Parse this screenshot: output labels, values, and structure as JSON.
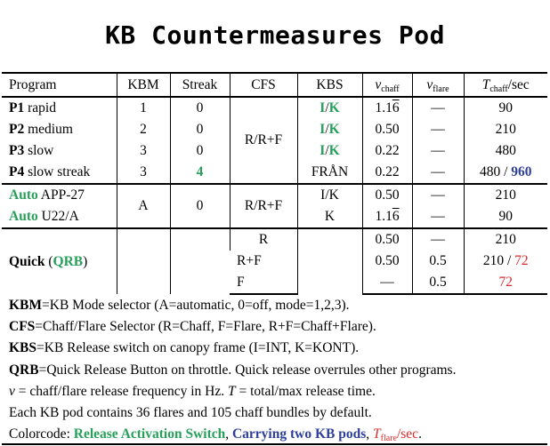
{
  "title": "KB Countermeasures Pod",
  "headers": {
    "program": "Program",
    "kbm": "KBM",
    "streak": "Streak",
    "cfs": "CFS",
    "kbs": "KBS",
    "nu": "ν",
    "nu_chaff_sub": "chaff",
    "nu_flare_sub": "flare",
    "t": "T",
    "t_sub": "chaff",
    "t_unit": "/sec"
  },
  "rows": {
    "p1": {
      "code": "P1",
      "name": " rapid",
      "kbm": "1",
      "streak": "0",
      "kbs_i": "I",
      "kbs_sep": "/",
      "kbs_k": "K",
      "nu_chaff_base": "1.1",
      "nu_chaff_rep": "6",
      "nu_flare": "—",
      "t_chaff": "90"
    },
    "p2": {
      "code": "P2",
      "name": " medium",
      "kbm": "2",
      "streak": "0",
      "kbs_i": "I",
      "kbs_sep": "/",
      "kbs_k": "K",
      "nu_chaff": "0.50",
      "nu_flare": "—",
      "t_chaff": "210"
    },
    "p3": {
      "code": "P3",
      "name": " slow",
      "kbm": "3",
      "streak": "0",
      "kbs_i": "I",
      "kbs_sep": "/",
      "kbs_k": "K",
      "nu_chaff": "0.22",
      "nu_flare": "—",
      "t_chaff": "480"
    },
    "p4": {
      "code": "P4",
      "name": " slow streak",
      "kbm": "3",
      "streak": "4",
      "kbs": "FRÅN",
      "nu_chaff": "0.22",
      "nu_flare": "—",
      "t_chaff": "480",
      "t_sep": " / ",
      "t_max": "960"
    },
    "p1_4_cfs": "R/R+F",
    "auto1": {
      "code": "Auto",
      "name": " APP-27",
      "kbs": "I/K",
      "nu_chaff": "0.50",
      "nu_flare": "—",
      "t_chaff": "210"
    },
    "auto2": {
      "code": "Auto",
      "name": " U22/A",
      "kbs": "K",
      "nu_chaff_base": "1.1",
      "nu_chaff_rep": "6",
      "nu_flare": "—",
      "t_chaff": "90"
    },
    "auto_kbm": "A",
    "auto_streak": "0",
    "auto_cfs": "R/R+F",
    "quick": {
      "label": "Quick",
      "paren_open": " (",
      "code": "QRB",
      "paren_close": ")",
      "r1": {
        "cfs": "R",
        "nu_chaff": "0.50",
        "nu_flare": "—",
        "t_chaff": "210"
      },
      "r2": {
        "cfs": "R+F",
        "nu_chaff": "0.50",
        "nu_flare": "0.5",
        "t_chaff": "210",
        "t_sep": " / ",
        "t_flare": "72"
      },
      "r3": {
        "cfs": "F",
        "nu_chaff": "—",
        "nu_flare": "0.5",
        "t_flare": "72"
      }
    }
  },
  "notes": {
    "kbm": {
      "term": "KBM",
      "text": "=KB Mode selector (A=automatic, 0=off, mode=1,2,3)."
    },
    "cfs": {
      "term": "CFS",
      "text": "=Chaff/Flare Selector (R=Chaff, F=Flare, R+F=Chaff+Flare)."
    },
    "kbs": {
      "term": "KBS",
      "text": "=KB Release switch on canopy frame (I=INT, K=KONT)."
    },
    "qrb": {
      "term": "QRB",
      "text": "=Quick Release Button on throttle. Quick release overrules other programs."
    },
    "nu": {
      "sym": "ν",
      "text1": " = chaff/flare release frequency in Hz. ",
      "sym2": "T",
      "text2": " = total/max release time."
    },
    "pod": "Each KB pod contains 36 flares and 105 chaff bundles by default.",
    "color": {
      "label": "Colorcode: ",
      "green": "Release Activation Switch",
      "sep1": ", ",
      "blue": "Carrying two KB pods",
      "sep2": ", ",
      "red_sym": "T",
      "red_sub": "flare",
      "red_unit": "/sec",
      "end": "."
    }
  },
  "colors": {
    "green": "#27a05a",
    "blue": "#2e3f9c",
    "red": "#dd2a2a"
  }
}
